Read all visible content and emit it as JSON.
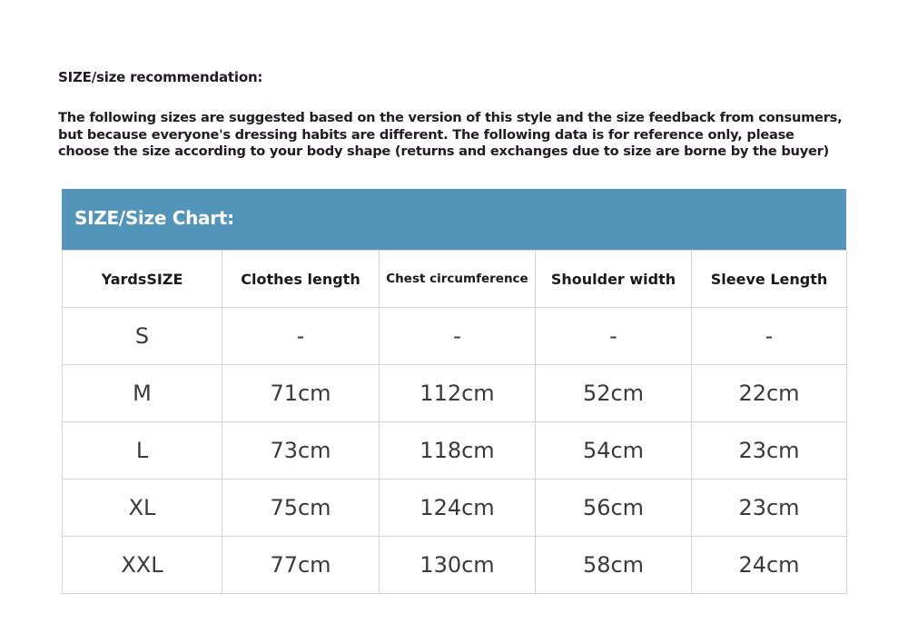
{
  "title": "SIZE/size recommendation:",
  "intro_lines": [
    "The following sizes are suggested based on the version of this style and the size feedback from consumers,",
    "but because everyone's dressing habits are different. The following data is for reference only, please",
    "choose the size according to your body shape (returns and exchanges due to size are borne by the buyer)"
  ],
  "chart": {
    "heading": "SIZE/Size Chart:",
    "header_color": "#5394bb",
    "columns": [
      "YardsSIZE",
      "Clothes length",
      "Chest circumference",
      "Shoulder width",
      "Sleeve Length"
    ],
    "rows": [
      [
        "S",
        "-",
        "-",
        "-",
        "-"
      ],
      [
        "M",
        "71cm",
        "112cm",
        "52cm",
        "22cm"
      ],
      [
        "L",
        "73cm",
        "118cm",
        "54cm",
        "23cm"
      ],
      [
        "XL",
        "75cm",
        "124cm",
        "56cm",
        "23cm"
      ],
      [
        "XXL",
        "77cm",
        "130cm",
        "58cm",
        "24cm"
      ]
    ]
  }
}
